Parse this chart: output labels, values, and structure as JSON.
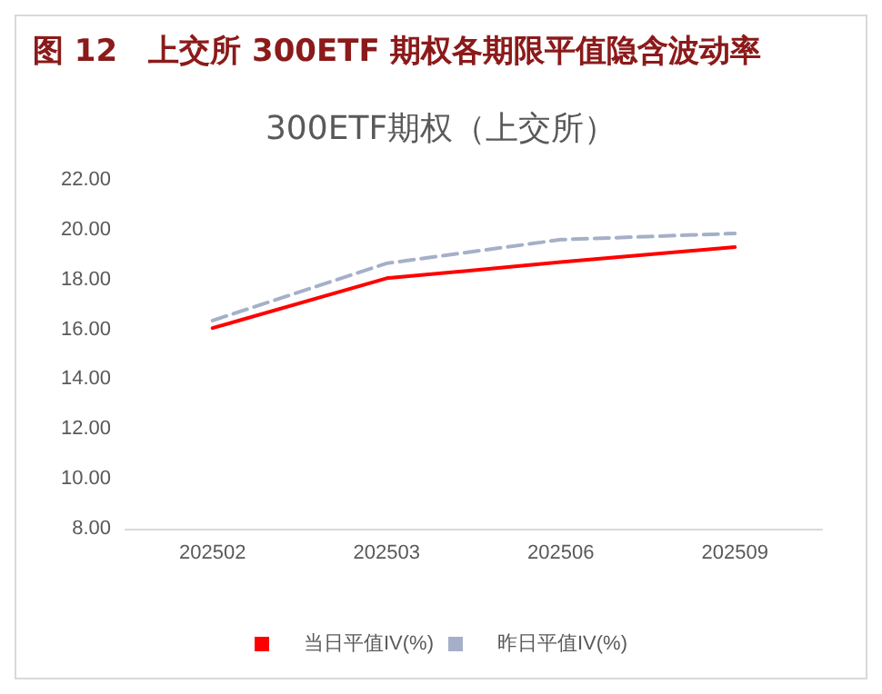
{
  "chart_data": {
    "type": "line",
    "title": "图 12　上交所 300ETF 期权各期限平值隐含波动率",
    "subtitle": "300ETF期权（上交所）",
    "categories": [
      "202502",
      "202503",
      "202506",
      "202509"
    ],
    "series": [
      {
        "name": "当日平值IV(%)",
        "color": "#ff0000",
        "line_style": "solid",
        "values": [
          16.05,
          18.05,
          18.7,
          19.3
        ]
      },
      {
        "name": "昨日平值IV(%)",
        "color": "#a5b0c8",
        "line_style": "dashed",
        "values": [
          16.35,
          18.65,
          19.6,
          19.85
        ]
      }
    ],
    "ylim": [
      8,
      22
    ],
    "yticks": [
      {
        "value": 8,
        "label": "8.00"
      },
      {
        "value": 10,
        "label": "10.00"
      },
      {
        "value": 12,
        "label": "12.00"
      },
      {
        "value": 14,
        "label": "14.00"
      },
      {
        "value": 16,
        "label": "16.00"
      },
      {
        "value": 18,
        "label": "18.00"
      },
      {
        "value": 20,
        "label": "20.00"
      },
      {
        "value": 22,
        "label": "22.00"
      }
    ],
    "grid": false,
    "legend": "bottom",
    "marker": "none"
  }
}
